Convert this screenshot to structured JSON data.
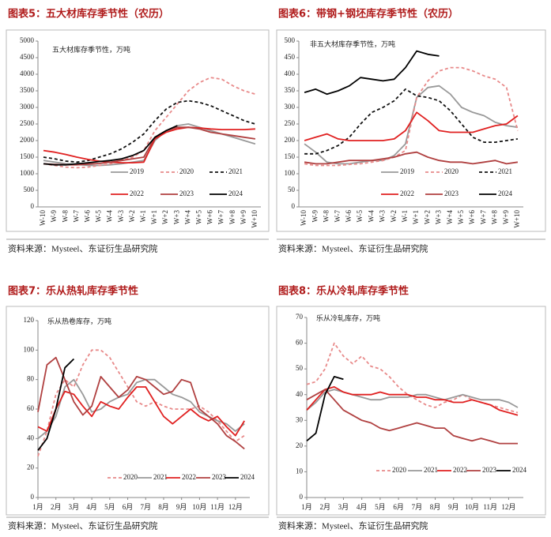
{
  "chart_data": [
    {
      "type": "line",
      "title": "图表5：五大材库存季节性（农历）",
      "annotation": "五大材库存季节性，万吨",
      "source": "资料来源：Mysteel、东证衍生品研究院",
      "categories": [
        "W-10",
        "W-9",
        "W-8",
        "W-7",
        "W-6",
        "W-5",
        "W-4",
        "W-3",
        "W-2",
        "W-1",
        "W+1",
        "W+2",
        "W+3",
        "W+4",
        "W+5",
        "W+6",
        "W+7",
        "W+8",
        "W+9",
        "W+10"
      ],
      "ylim": [
        0,
        5000
      ],
      "yticks": [
        0,
        500,
        1000,
        1500,
        2000,
        2500,
        3000,
        3500,
        4000,
        4500,
        5000
      ],
      "series": [
        {
          "name": "2019",
          "color": "#999999",
          "dash": false,
          "values": [
            1400,
            1350,
            1300,
            1280,
            1250,
            1250,
            1270,
            1300,
            1350,
            1400,
            2000,
            2300,
            2450,
            2500,
            2400,
            2300,
            2200,
            2100,
            2000,
            1900
          ]
        },
        {
          "name": "2020",
          "color": "#e88a8a",
          "dash": true,
          "values": [
            1300,
            1250,
            1200,
            1180,
            1200,
            1250,
            1300,
            1400,
            1500,
            1700,
            2300,
            2700,
            3100,
            3500,
            3750,
            3900,
            3850,
            3650,
            3500,
            3400
          ]
        },
        {
          "name": "2021",
          "color": "#111111",
          "dash": true,
          "values": [
            1500,
            1450,
            1380,
            1350,
            1400,
            1500,
            1600,
            1750,
            1950,
            2200,
            2600,
            2950,
            3150,
            3200,
            3150,
            3050,
            2900,
            2750,
            2600,
            2500
          ]
        },
        {
          "name": "2022",
          "color": "#e02020",
          "dash": false,
          "values": [
            1700,
            1650,
            1580,
            1500,
            1430,
            1380,
            1350,
            1330,
            1330,
            1350,
            2050,
            2250,
            2350,
            2400,
            2380,
            2350,
            2330,
            2330,
            2330,
            2350
          ]
        },
        {
          "name": "2023",
          "color": "#b04040",
          "dash": false,
          "values": [
            1300,
            1280,
            1270,
            1270,
            1290,
            1310,
            1350,
            1400,
            1450,
            1500,
            2100,
            2300,
            2400,
            2400,
            2350,
            2250,
            2200,
            2150,
            2100,
            2050
          ]
        },
        {
          "name": "2024",
          "color": "#000000",
          "dash": false,
          "values": [
            1300,
            1270,
            1270,
            1300,
            1330,
            1370,
            1400,
            1450,
            1550,
            1700,
            2100,
            2300,
            2450,
            null,
            null,
            null,
            null,
            null,
            null,
            null
          ]
        }
      ]
    },
    {
      "type": "line",
      "title": "图表6：带钢+钢坯库存季节性（农历）",
      "annotation": "非五大材库存季节性，万吨",
      "source": "资料来源：Mysteel、东证衍生品研究院",
      "categories": [
        "W-10",
        "W-9",
        "W-8",
        "W-7",
        "W-6",
        "W-5",
        "W-4",
        "W-3",
        "W-2",
        "W-1",
        "W+1",
        "W+2",
        "W+3",
        "W+4",
        "W+5",
        "W+6",
        "W+7",
        "W+8",
        "W+9",
        "W+10"
      ],
      "ylim": [
        0,
        500
      ],
      "yticks": [
        0,
        50,
        100,
        150,
        200,
        250,
        300,
        350,
        400,
        450,
        500
      ],
      "series": [
        {
          "name": "2019",
          "color": "#999999",
          "dash": false,
          "values": [
            190,
            165,
            135,
            130,
            130,
            135,
            140,
            140,
            155,
            190,
            330,
            360,
            365,
            340,
            300,
            285,
            275,
            255,
            245,
            240
          ]
        },
        {
          "name": "2020",
          "color": "#e88a8a",
          "dash": true,
          "values": [
            130,
            125,
            125,
            125,
            128,
            130,
            135,
            140,
            150,
            170,
            330,
            380,
            410,
            420,
            420,
            410,
            395,
            385,
            360,
            230
          ]
        },
        {
          "name": "2021",
          "color": "#111111",
          "dash": true,
          "values": [
            160,
            160,
            170,
            185,
            210,
            250,
            285,
            300,
            320,
            355,
            335,
            330,
            320,
            290,
            250,
            210,
            195,
            195,
            200,
            205
          ]
        },
        {
          "name": "2022",
          "color": "#e02020",
          "dash": false,
          "values": [
            200,
            210,
            220,
            205,
            200,
            200,
            200,
            200,
            205,
            230,
            285,
            260,
            230,
            225,
            225,
            225,
            235,
            245,
            250,
            275
          ]
        },
        {
          "name": "2023",
          "color": "#b04040",
          "dash": false,
          "values": [
            135,
            130,
            130,
            135,
            140,
            140,
            140,
            145,
            150,
            160,
            165,
            150,
            140,
            135,
            135,
            130,
            135,
            140,
            130,
            135
          ]
        },
        {
          "name": "2024",
          "color": "#000000",
          "dash": false,
          "values": [
            345,
            355,
            340,
            350,
            365,
            390,
            385,
            380,
            385,
            420,
            470,
            460,
            455,
            null,
            null,
            null,
            null,
            null,
            null,
            null
          ]
        }
      ]
    },
    {
      "type": "line",
      "title": "图表7：乐从热轧库存季节性",
      "annotation": "乐从热卷库存，万吨",
      "source": "资料来源：Mysteel、东证衍生品研究院",
      "x": [
        1,
        1.5,
        2,
        2.5,
        3,
        3.5,
        4,
        4.5,
        5,
        5.5,
        6,
        6.5,
        7,
        7.5,
        8,
        8.5,
        9,
        9.5,
        10,
        10.5,
        11,
        11.5,
        12,
        12.5
      ],
      "xlim": [
        1,
        12.8
      ],
      "xticks": [
        {
          "value": 1,
          "label": "1月"
        },
        {
          "value": 2,
          "label": "2月"
        },
        {
          "value": 3,
          "label": "3月"
        },
        {
          "value": 4,
          "label": "4月"
        },
        {
          "value": 5,
          "label": "5月"
        },
        {
          "value": 6,
          "label": "6月"
        },
        {
          "value": 7,
          "label": "7月"
        },
        {
          "value": 8,
          "label": "8月"
        },
        {
          "value": 9,
          "label": "9月"
        },
        {
          "value": 10,
          "label": "10月"
        },
        {
          "value": 11,
          "label": "11月"
        },
        {
          "value": 12,
          "label": "12月"
        }
      ],
      "ylim": [
        0,
        120
      ],
      "yticks": [
        0,
        20,
        40,
        60,
        80,
        100,
        120
      ],
      "series": [
        {
          "name": "2020",
          "color": "#e88a8a",
          "dash": true,
          "values": [
            28,
            45,
            70,
            80,
            75,
            90,
            100,
            100,
            95,
            85,
            75,
            65,
            62,
            65,
            62,
            60,
            60,
            60,
            62,
            58,
            52,
            45,
            38,
            42
          ]
        },
        {
          "name": "2021",
          "color": "#999999",
          "dash": false,
          "values": [
            40,
            45,
            55,
            75,
            80,
            70,
            58,
            60,
            65,
            68,
            70,
            78,
            80,
            80,
            75,
            70,
            68,
            65,
            58,
            55,
            52,
            50,
            45,
            50
          ]
        },
        {
          "name": "2022",
          "color": "#e02020",
          "dash": false,
          "values": [
            48,
            45,
            60,
            72,
            70,
            62,
            55,
            65,
            62,
            60,
            68,
            75,
            75,
            65,
            55,
            50,
            55,
            60,
            55,
            52,
            55,
            48,
            42,
            52
          ]
        },
        {
          "name": "2023",
          "color": "#b04040",
          "dash": false,
          "values": [
            58,
            90,
            95,
            80,
            65,
            56,
            62,
            82,
            75,
            68,
            73,
            82,
            80,
            75,
            70,
            72,
            80,
            78,
            60,
            55,
            50,
            42,
            38,
            33
          ]
        },
        {
          "name": "2024",
          "color": "#000000",
          "dash": false,
          "values": [
            32,
            40,
            60,
            88,
            94,
            null,
            null,
            null,
            null,
            null,
            null,
            null,
            null,
            null,
            null,
            null,
            null,
            null,
            null,
            null,
            null,
            null,
            null,
            null
          ]
        }
      ]
    },
    {
      "type": "line",
      "title": "图表8：乐从冷轧库存季节性",
      "annotation": "乐从冷轧库存，万吨",
      "source": "资料来源：Mysteel、东证衍生品研究院",
      "x": [
        1,
        1.5,
        2,
        2.5,
        3,
        3.5,
        4,
        4.5,
        5,
        5.5,
        6,
        6.5,
        7,
        7.5,
        8,
        8.5,
        9,
        9.5,
        10,
        10.5,
        11,
        11.5,
        12,
        12.5
      ],
      "xlim": [
        1,
        12.8
      ],
      "xticks": [
        {
          "value": 1,
          "label": "1月"
        },
        {
          "value": 2,
          "label": "2月"
        },
        {
          "value": 3,
          "label": "3月"
        },
        {
          "value": 4,
          "label": "4月"
        },
        {
          "value": 5,
          "label": "5月"
        },
        {
          "value": 6,
          "label": "6月"
        },
        {
          "value": 7,
          "label": "7月"
        },
        {
          "value": 8,
          "label": "8月"
        },
        {
          "value": 9,
          "label": "9月"
        },
        {
          "value": 10,
          "label": "10月"
        },
        {
          "value": 11,
          "label": "11月"
        },
        {
          "value": 12,
          "label": "12月"
        }
      ],
      "ylim": [
        0,
        70
      ],
      "yticks": [
        0,
        10,
        20,
        30,
        40,
        50,
        60,
        70
      ],
      "series": [
        {
          "name": "2020",
          "color": "#e88a8a",
          "dash": true,
          "values": [
            44,
            45,
            50,
            60,
            55,
            52,
            55,
            51,
            50,
            47,
            43,
            40,
            38,
            36,
            35,
            37,
            38,
            40,
            38,
            37,
            36,
            35,
            34,
            33
          ]
        },
        {
          "name": "2021",
          "color": "#999999",
          "dash": false,
          "values": [
            34,
            37,
            41,
            42,
            41,
            40,
            39,
            38,
            38,
            39,
            39,
            39,
            40,
            40,
            39,
            38,
            39,
            40,
            39,
            38,
            38,
            38,
            37,
            35
          ]
        },
        {
          "name": "2022",
          "color": "#e02020",
          "dash": false,
          "values": [
            34,
            38,
            42,
            43,
            41,
            40,
            40,
            40,
            41,
            40,
            40,
            40,
            39,
            39,
            38,
            38,
            37,
            37,
            38,
            37,
            36,
            34,
            33,
            32
          ]
        },
        {
          "name": "2023",
          "color": "#b04040",
          "dash": false,
          "values": [
            38,
            40,
            42,
            38,
            34,
            32,
            30,
            29,
            27,
            26,
            27,
            28,
            29,
            28,
            27,
            27,
            24,
            23,
            22,
            23,
            22,
            21,
            21,
            21
          ]
        },
        {
          "name": "2024",
          "color": "#000000",
          "dash": false,
          "values": [
            22,
            25,
            40,
            47,
            46,
            null,
            null,
            null,
            null,
            null,
            null,
            null,
            null,
            null,
            null,
            null,
            null,
            null,
            null,
            null,
            null,
            null,
            null,
            null
          ]
        }
      ]
    }
  ]
}
